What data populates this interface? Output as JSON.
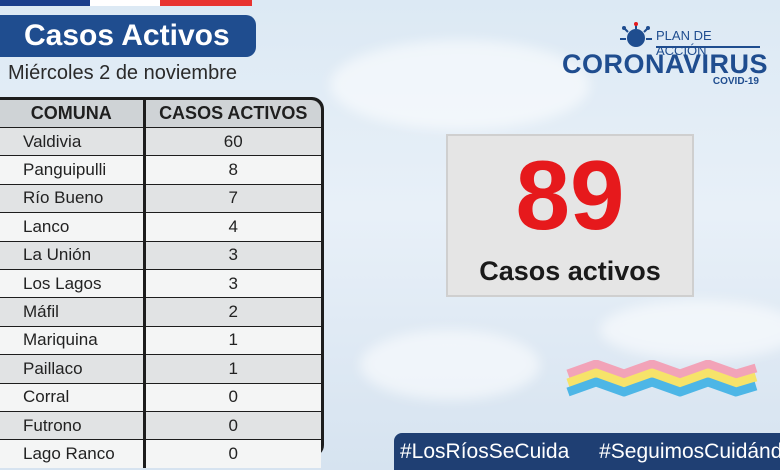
{
  "header": {
    "title": "Casos Activos",
    "date": "Miércoles 2 de noviembre"
  },
  "table": {
    "headers": [
      "COMUNA",
      "CASOS ACTIVOS"
    ],
    "rows": [
      {
        "comuna": "Valdivia",
        "casos": "60"
      },
      {
        "comuna": "Panguipulli",
        "casos": "8"
      },
      {
        "comuna": "Río Bueno",
        "casos": "7"
      },
      {
        "comuna": "Lanco",
        "casos": "4"
      },
      {
        "comuna": "La Unión",
        "casos": "3"
      },
      {
        "comuna": "Los Lagos",
        "casos": "3"
      },
      {
        "comuna": "Máfil",
        "casos": "2"
      },
      {
        "comuna": "Mariquina",
        "casos": "1"
      },
      {
        "comuna": "Paillaco",
        "casos": "1"
      },
      {
        "comuna": "Corral",
        "casos": "0"
      },
      {
        "comuna": "Futrono",
        "casos": "0"
      },
      {
        "comuna": "Lago Ranco",
        "casos": "0"
      }
    ]
  },
  "logo": {
    "plan": "PLAN DE ACCIÓN",
    "name": "CORONAVIRUS",
    "sub": "COVID-19"
  },
  "counter": {
    "value": "89",
    "label": "Casos activos"
  },
  "footer": {
    "hashtag1": "#LosRíosSeCuida",
    "hashtag2": "#SeguimosCuidándonos"
  },
  "colors": {
    "brand_blue": "#1f4d8f",
    "counter_red": "#e6191c",
    "footer_blue": "#1f3f73"
  }
}
